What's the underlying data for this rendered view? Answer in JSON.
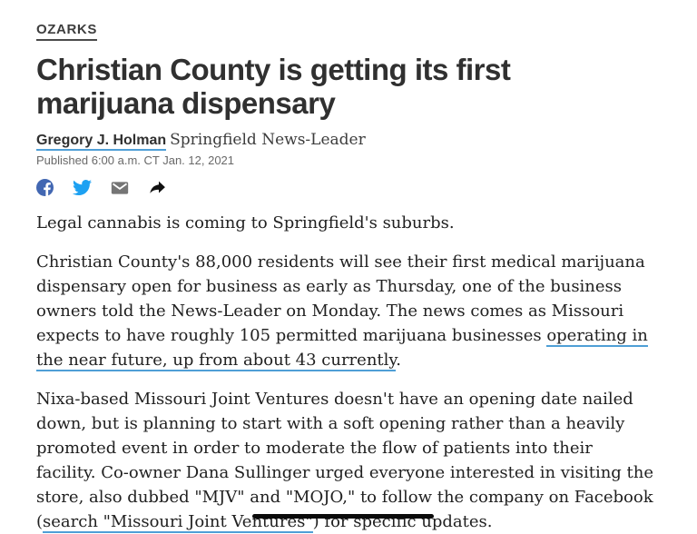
{
  "article": {
    "section_label": "OZARKS",
    "headline": "Christian County is getting its first marijuana dispensary",
    "byline": {
      "author": "Gregory J. Holman",
      "publication": "Springfield News-Leader"
    },
    "published": "Published 6:00 a.m. CT Jan. 12, 2021",
    "share_toolbar": {
      "icons": [
        "facebook-icon",
        "twitter-icon",
        "email-icon",
        "share-icon"
      ]
    },
    "paragraphs": [
      {
        "segments": [
          {
            "text": "Legal cannabis is coming to Springfield's suburbs.",
            "link": false
          }
        ]
      },
      {
        "segments": [
          {
            "text": "Christian County's 88,000 residents will see their first medical marijuana dispensary open for business as early as Thursday, one of the business owners told the News-Leader on Monday. The news comes as Missouri expects to have roughly 105 permitted marijuana businesses ",
            "link": false
          },
          {
            "text": "operating in the near future, up from about 43 currently",
            "link": true
          },
          {
            "text": ".",
            "link": false
          }
        ]
      },
      {
        "segments": [
          {
            "text": "Nixa-based Missouri Joint Ventures doesn't have an opening date nailed down, but is planning to start with a soft opening rather than a heavily promoted event in order to moderate the flow of patients into their facility. Co-owner Dana Sullinger urged everyone interested in visiting the store, also dubbed \"MJV\" and \"MOJO,\" to follow the company on Facebook (",
            "link": false
          },
          {
            "text": "search \"Missouri Joint Ventures\"",
            "link": true
          },
          {
            "text": ") for specific updates.",
            "link": false
          }
        ]
      }
    ]
  },
  "colors": {
    "facebook_blue": "#4267B2",
    "twitter_blue": "#1DA1F2",
    "email_gray": "#757575",
    "share_black": "#111111",
    "icon_white": "#ffffff",
    "link_underline": "#4f9fd6",
    "headline_text": "#303030",
    "body_text": "#212121",
    "meta_text": "#696969"
  }
}
